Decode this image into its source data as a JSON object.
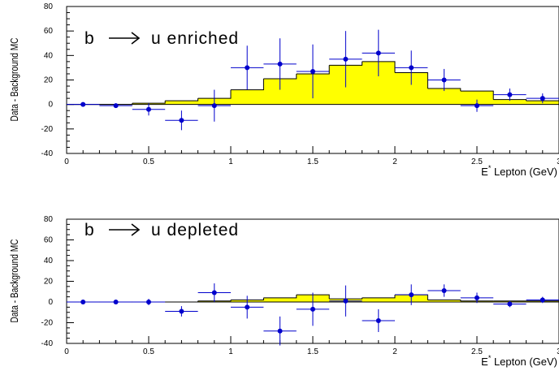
{
  "chart_data": [
    {
      "type": "histogram",
      "annotation_left": "b",
      "annotation_right": "u enriched",
      "xlabel": "E* Lepton (GeV)",
      "xlabel_main": "E",
      "xlabel_sup": "*",
      "xlabel_rest": " Lepton (GeV)",
      "ylabel": "Data - Background MC",
      "xlim": [
        0,
        3
      ],
      "ylim": [
        -40,
        80
      ],
      "x_ticks": [
        0,
        0.5,
        1,
        1.5,
        2,
        2.5,
        3
      ],
      "x_tick_labels": [
        "0",
        "0.5",
        "1",
        "1.5",
        "2",
        "2.5",
        "3"
      ],
      "y_ticks": [
        -40,
        -20,
        0,
        20,
        40,
        60,
        80
      ],
      "y_tick_labels": [
        "-40",
        "-20",
        "0",
        "20",
        "40",
        "60",
        "80"
      ],
      "bin_edges": [
        0,
        0.2,
        0.4,
        0.6,
        0.8,
        1.0,
        1.2,
        1.4,
        1.6,
        1.8,
        2.0,
        2.2,
        2.4,
        2.6,
        2.8,
        3.0
      ],
      "mc_values": [
        0,
        0,
        1,
        3,
        5,
        12,
        21,
        25,
        32,
        35,
        26,
        13,
        11,
        4,
        3
      ],
      "mc_color": "#ffff00",
      "points": [
        {
          "x": 0.1,
          "y": 0,
          "yerr": 0
        },
        {
          "x": 0.3,
          "y": -1,
          "yerr": 1
        },
        {
          "x": 0.5,
          "y": -4,
          "yerr": 5
        },
        {
          "x": 0.7,
          "y": -13,
          "yerr": 8
        },
        {
          "x": 0.9,
          "y": -1,
          "yerr": 13
        },
        {
          "x": 1.1,
          "y": 30,
          "yerr": 18
        },
        {
          "x": 1.3,
          "y": 33,
          "yerr": 21
        },
        {
          "x": 1.5,
          "y": 27,
          "yerr": 22
        },
        {
          "x": 1.7,
          "y": 37,
          "yerr": 23
        },
        {
          "x": 1.9,
          "y": 42,
          "yerr": 19
        },
        {
          "x": 2.1,
          "y": 30,
          "yerr": 14
        },
        {
          "x": 2.3,
          "y": 20,
          "yerr": 9
        },
        {
          "x": 2.5,
          "y": -1,
          "yerr": 5
        },
        {
          "x": 2.7,
          "y": 8,
          "yerr": 5
        },
        {
          "x": 2.9,
          "y": 5,
          "yerr": 4
        }
      ],
      "point_color": "#0000cc"
    },
    {
      "type": "histogram",
      "annotation_left": "b",
      "annotation_right": "u depleted",
      "xlabel": "E* Lepton (GeV)",
      "xlabel_main": "E",
      "xlabel_sup": "*",
      "xlabel_rest": " Lepton (GeV)",
      "ylabel": "Data - Background MC",
      "xlim": [
        0,
        3
      ],
      "ylim": [
        -40,
        80
      ],
      "x_ticks": [
        0,
        0.5,
        1,
        1.5,
        2,
        2.5,
        3
      ],
      "x_tick_labels": [
        "0",
        "0.5",
        "1",
        "1.5",
        "2",
        "2.5",
        "3"
      ],
      "y_ticks": [
        -40,
        -20,
        0,
        20,
        40,
        60,
        80
      ],
      "y_tick_labels": [
        "-40",
        "-20",
        "0",
        "20",
        "40",
        "60",
        "80"
      ],
      "bin_edges": [
        0,
        0.2,
        0.4,
        0.6,
        0.8,
        1.0,
        1.2,
        1.4,
        1.6,
        1.8,
        2.0,
        2.2,
        2.4,
        2.6,
        2.8,
        3.0
      ],
      "mc_values": [
        0,
        0,
        0,
        0,
        1,
        2,
        4,
        7,
        3,
        4,
        7,
        2,
        1,
        1,
        1
      ],
      "mc_color": "#ffff00",
      "points": [
        {
          "x": 0.1,
          "y": 0,
          "yerr": 0
        },
        {
          "x": 0.3,
          "y": 0,
          "yerr": 1
        },
        {
          "x": 0.5,
          "y": 0,
          "yerr": 3
        },
        {
          "x": 0.7,
          "y": -9,
          "yerr": 5
        },
        {
          "x": 0.9,
          "y": 9,
          "yerr": 9
        },
        {
          "x": 1.1,
          "y": -5,
          "yerr": 11
        },
        {
          "x": 1.3,
          "y": -28,
          "yerr": 14
        },
        {
          "x": 1.5,
          "y": -7,
          "yerr": 16
        },
        {
          "x": 1.7,
          "y": 1,
          "yerr": 15
        },
        {
          "x": 1.9,
          "y": -18,
          "yerr": 11
        },
        {
          "x": 2.1,
          "y": 7,
          "yerr": 10
        },
        {
          "x": 2.3,
          "y": 11,
          "yerr": 6
        },
        {
          "x": 2.5,
          "y": 4,
          "yerr": 5
        },
        {
          "x": 2.7,
          "y": -2,
          "yerr": 3
        },
        {
          "x": 2.9,
          "y": 2,
          "yerr": 3
        }
      ],
      "point_color": "#0000cc"
    }
  ]
}
